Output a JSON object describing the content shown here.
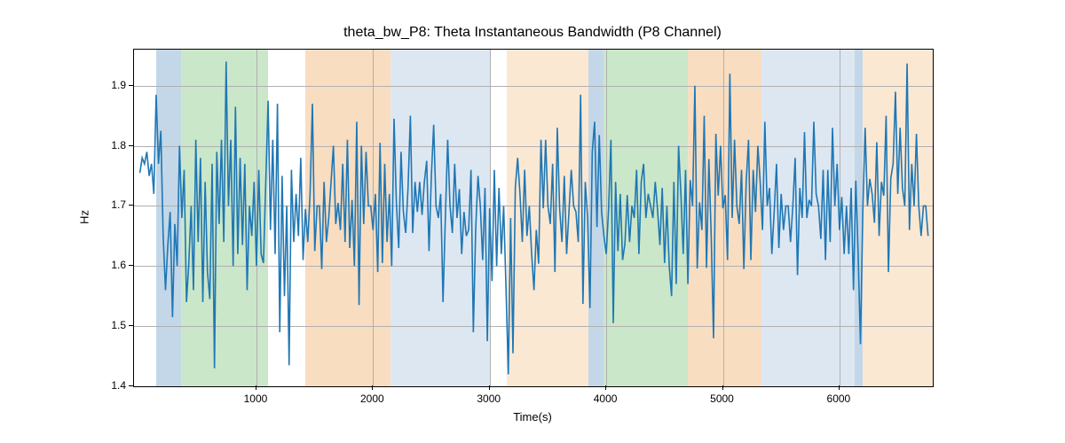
{
  "chart": {
    "type": "line",
    "title": "theta_bw_P8: Theta Instantaneous Bandwidth (P8 Channel)",
    "title_fontsize": 16,
    "xlabel": "Time(s)",
    "ylabel": "Hz",
    "label_fontsize": 13,
    "tick_fontsize": 12,
    "background_color": "#ffffff",
    "grid_color": "#b0b0b0",
    "line_color": "#1f77b4",
    "line_width": 1.6,
    "xlim": [
      -50,
      6800
    ],
    "ylim": [
      1.4,
      1.96
    ],
    "xticks": [
      1000,
      2000,
      3000,
      4000,
      5000,
      6000
    ],
    "yticks": [
      1.4,
      1.5,
      1.6,
      1.7,
      1.8,
      1.9
    ],
    "xtick_labels": [
      "1000",
      "2000",
      "3000",
      "4000",
      "5000",
      "6000"
    ],
    "ytick_labels": [
      "1.4",
      "1.5",
      "1.6",
      "1.7",
      "1.8",
      "1.9"
    ],
    "bands": [
      {
        "start": 140,
        "end": 350,
        "color": "#c3d7e8"
      },
      {
        "start": 350,
        "end": 1100,
        "color": "#cbe7c9"
      },
      {
        "start": 1420,
        "end": 2150,
        "color": "#f9ddc0"
      },
      {
        "start": 2150,
        "end": 3000,
        "color": "#dde7f2"
      },
      {
        "start": 3150,
        "end": 3850,
        "color": "#fbe8d3"
      },
      {
        "start": 3850,
        "end": 3980,
        "color": "#c3d7e8"
      },
      {
        "start": 3980,
        "end": 4700,
        "color": "#cbe7c9"
      },
      {
        "start": 4700,
        "end": 5330,
        "color": "#f9ddc0"
      },
      {
        "start": 5330,
        "end": 6130,
        "color": "#dde7f2"
      },
      {
        "start": 6130,
        "end": 6200,
        "color": "#c3d7e8"
      },
      {
        "start": 6200,
        "end": 6800,
        "color": "#fbe8d3"
      }
    ],
    "series_x_step": 20,
    "series_y": [
      1.755,
      1.78,
      1.77,
      1.79,
      1.75,
      1.77,
      1.72,
      1.885,
      1.77,
      1.825,
      1.65,
      1.56,
      1.635,
      1.69,
      1.515,
      1.67,
      1.6,
      1.8,
      1.68,
      1.76,
      1.54,
      1.605,
      1.7,
      1.56,
      1.81,
      1.64,
      1.78,
      1.54,
      1.74,
      1.59,
      1.545,
      1.77,
      1.43,
      1.79,
      1.67,
      1.81,
      1.64,
      1.94,
      1.7,
      1.81,
      1.6,
      1.865,
      1.62,
      1.78,
      1.635,
      1.77,
      1.56,
      1.7,
      1.65,
      1.74,
      1.6,
      1.76,
      1.62,
      1.605,
      1.74,
      1.875,
      1.66,
      1.81,
      1.62,
      1.87,
      1.49,
      1.75,
      1.55,
      1.7,
      1.435,
      1.76,
      1.64,
      1.72,
      1.65,
      1.78,
      1.61,
      1.695,
      1.64,
      1.72,
      1.87,
      1.625,
      1.7,
      1.7,
      1.595,
      1.74,
      1.64,
      1.68,
      1.74,
      1.8,
      1.67,
      1.705,
      1.66,
      1.77,
      1.64,
      1.81,
      1.63,
      1.71,
      1.6,
      1.84,
      1.535,
      1.8,
      1.67,
      1.79,
      1.7,
      1.7,
      1.66,
      1.72,
      1.59,
      1.805,
      1.605,
      1.77,
      1.64,
      1.72,
      1.6,
      1.845,
      1.705,
      1.63,
      1.79,
      1.69,
      1.655,
      1.73,
      1.85,
      1.655,
      1.74,
      1.69,
      1.74,
      1.685,
      1.74,
      1.775,
      1.625,
      1.75,
      1.835,
      1.7,
      1.68,
      1.72,
      1.54,
      1.68,
      1.81,
      1.7,
      1.655,
      1.77,
      1.68,
      1.728,
      1.62,
      1.69,
      1.65,
      1.66,
      1.76,
      1.49,
      1.66,
      1.75,
      1.7,
      1.61,
      1.73,
      1.475,
      1.696,
      1.575,
      1.76,
      1.6,
      1.73,
      1.62,
      1.7,
      1.565,
      1.42,
      1.68,
      1.455,
      1.73,
      1.78,
      1.72,
      1.64,
      1.76,
      1.65,
      1.7,
      1.62,
      1.56,
      1.66,
      1.604,
      1.81,
      1.696,
      1.81,
      1.7,
      1.67,
      1.77,
      1.59,
      1.83,
      1.696,
      1.64,
      1.75,
      1.62,
      1.69,
      1.76,
      1.7,
      1.69,
      1.64,
      1.885,
      1.537,
      1.74,
      1.68,
      1.53,
      1.79,
      1.84,
      1.665,
      1.818,
      1.69,
      1.65,
      1.62,
      1.695,
      1.81,
      1.505,
      1.74,
      1.625,
      1.72,
      1.61,
      1.637,
      1.718,
      1.64,
      1.7,
      1.68,
      1.76,
      1.62,
      1.74,
      1.77,
      1.68,
      1.72,
      1.7,
      1.68,
      1.74,
      1.693,
      1.635,
      1.73,
      1.605,
      1.7,
      1.6,
      1.55,
      1.74,
      1.57,
      1.8,
      1.72,
      1.62,
      1.76,
      1.57,
      1.743,
      1.7,
      1.9,
      1.596,
      1.706,
      1.66,
      1.85,
      1.597,
      1.778,
      1.65,
      1.48,
      1.82,
      1.717,
      1.8,
      1.696,
      1.718,
      1.61,
      1.92,
      1.68,
      1.81,
      1.7,
      1.67,
      1.76,
      1.595,
      1.74,
      1.81,
      1.61,
      1.76,
      1.69,
      1.8,
      1.74,
      1.66,
      1.84,
      1.7,
      1.73,
      1.62,
      1.69,
      1.77,
      1.63,
      1.72,
      1.66,
      1.7,
      1.7,
      1.64,
      1.7,
      1.78,
      1.585,
      1.73,
      1.68,
      1.823,
      1.68,
      1.71,
      1.7,
      1.84,
      1.72,
      1.7,
      1.645,
      1.76,
      1.61,
      1.76,
      1.64,
      1.83,
      1.7,
      1.77,
      1.66,
      1.715,
      1.62,
      1.7,
      1.62,
      1.73,
      1.56,
      1.742,
      1.62,
      1.47,
      1.69,
      1.83,
      1.7,
      1.745,
      1.72,
      1.672,
      1.806,
      1.65,
      1.74,
      1.717,
      1.85,
      1.59,
      1.746,
      1.77,
      1.89,
      1.72,
      1.83,
      1.73,
      1.7,
      1.937,
      1.66,
      1.77,
      1.7,
      1.82,
      1.7,
      1.65,
      1.7,
      1.7,
      1.65
    ]
  }
}
